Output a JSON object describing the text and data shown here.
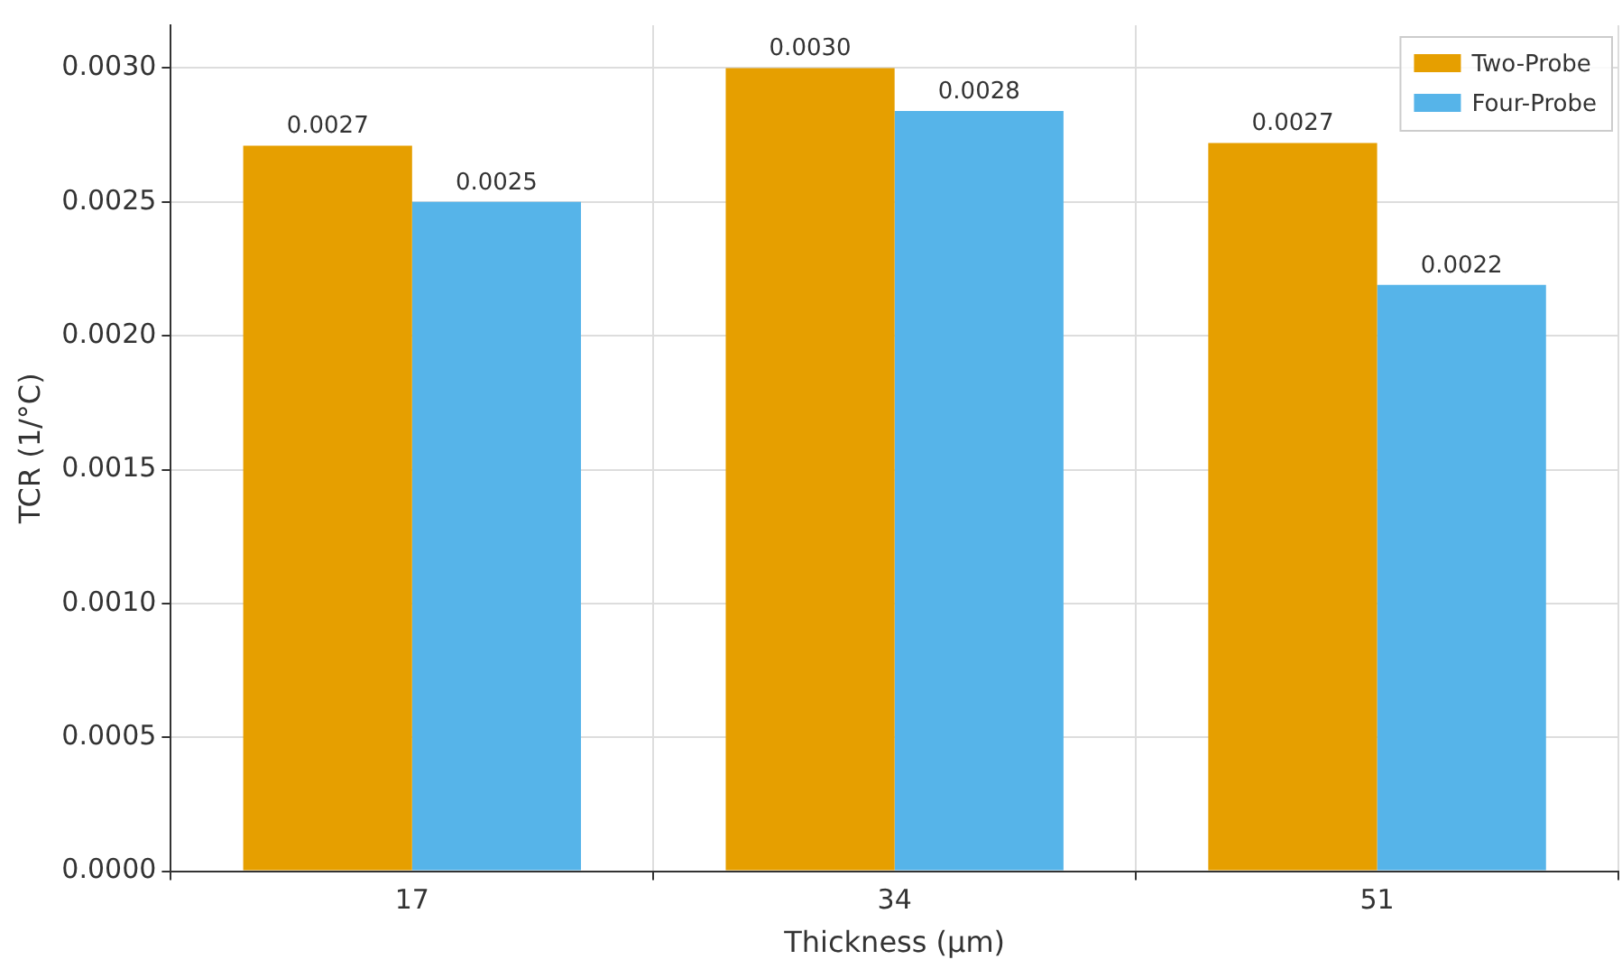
{
  "chart_data": {
    "type": "bar",
    "xlabel": "Thickness (µm)",
    "ylabel": "TCR (1/°C)",
    "categories": [
      "17",
      "34",
      "51"
    ],
    "series": [
      {
        "name": "Two-Probe",
        "color": "#e69f00",
        "values": [
          0.00271,
          0.003,
          0.00272
        ],
        "value_labels": [
          "0.0027",
          "0.0030",
          "0.0027"
        ]
      },
      {
        "name": "Four-Probe",
        "color": "#56b4e9",
        "values": [
          0.0025,
          0.00284,
          0.00219
        ],
        "value_labels": [
          "0.0025",
          "0.0028",
          "0.0022"
        ]
      }
    ],
    "ylim": [
      0,
      0.00316
    ],
    "yticks": [
      {
        "value": 0,
        "label": "0.0000"
      },
      {
        "value": 0.0005,
        "label": "0.0005"
      },
      {
        "value": 0.001,
        "label": "0.0010"
      },
      {
        "value": 0.0015,
        "label": "0.0015"
      },
      {
        "value": 0.002,
        "label": "0.0020"
      },
      {
        "value": 0.0025,
        "label": "0.0025"
      },
      {
        "value": 0.003,
        "label": "0.0030"
      }
    ],
    "grid": true,
    "legend": "top right"
  }
}
